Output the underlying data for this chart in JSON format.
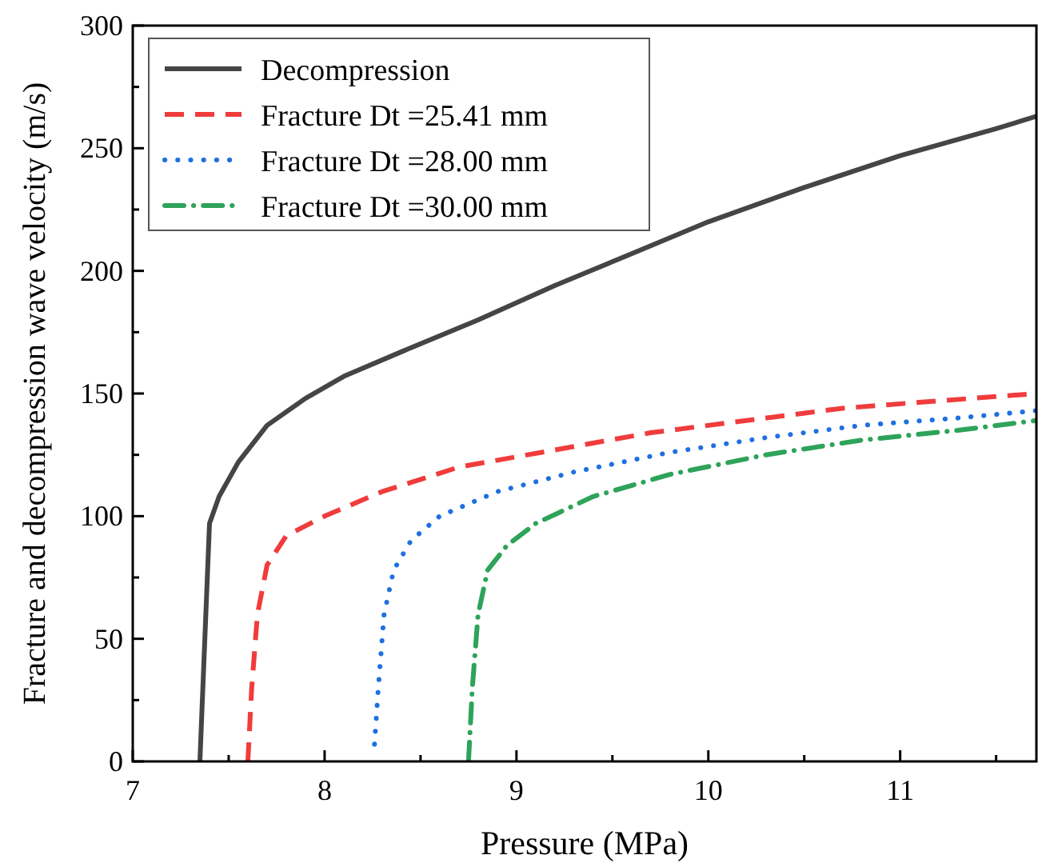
{
  "chart_data": {
    "type": "line",
    "xlabel": "Pressure (MPa)",
    "ylabel": "Fracture and decompression wave velocity (m/s)",
    "xlim": [
      7,
      11.71
    ],
    "ylim": [
      0,
      300
    ],
    "xticks": [
      7,
      {
        "value": 7.5,
        "label": null
      },
      8,
      {
        "value": 8.5,
        "label": null
      },
      9,
      {
        "value": 9.5,
        "label": null
      },
      10,
      {
        "value": 10.5,
        "label": null
      },
      11,
      {
        "value": 11.5,
        "label": null
      }
    ],
    "yticks": [
      0,
      {
        "value": 25,
        "label": null
      },
      50,
      {
        "value": 75,
        "label": null
      },
      100,
      {
        "value": 125,
        "label": null
      },
      150,
      {
        "value": 175,
        "label": null
      },
      200,
      {
        "value": 225,
        "label": null
      },
      250,
      {
        "value": 275,
        "label": null
      },
      300
    ],
    "grid": false,
    "legend": "top left",
    "marker": "none",
    "series": [
      {
        "name": "Decompression",
        "color": "#454545",
        "line_style": "solid",
        "x": [
          7.35,
          7.4,
          7.45,
          7.55,
          7.7,
          7.9,
          8.1,
          8.4,
          8.8,
          9.2,
          9.6,
          10.0,
          10.5,
          11.0,
          11.5,
          11.71
        ],
        "values": [
          0,
          97,
          108,
          122,
          137,
          148,
          157,
          167,
          180,
          194,
          207,
          220,
          234,
          247,
          258,
          263
        ]
      },
      {
        "name": "Fracture Dt =25.41 mm",
        "color": "#f03c3c",
        "line_style": "dashed",
        "x": [
          7.6,
          7.62,
          7.65,
          7.7,
          7.8,
          8.0,
          8.3,
          8.7,
          9.2,
          9.7,
          10.2,
          10.7,
          11.2,
          11.71
        ],
        "values": [
          0,
          30,
          60,
          80,
          92,
          100,
          110,
          120,
          127,
          134,
          139,
          144,
          147,
          150
        ]
      },
      {
        "name": "Fracture Dt =28.00 mm",
        "color": "#1f6fe0",
        "line_style": "dotted",
        "x": [
          8.26,
          8.28,
          8.31,
          8.36,
          8.45,
          8.6,
          8.9,
          9.3,
          9.8,
          10.3,
          10.8,
          11.3,
          11.71
        ],
        "values": [
          7,
          30,
          60,
          78,
          90,
          100,
          110,
          118,
          126,
          132,
          137,
          140,
          143
        ]
      },
      {
        "name": "Fracture Dt =30.00 mm",
        "color": "#2ea35a",
        "line_style": "dashdot",
        "x": [
          8.75,
          8.77,
          8.8,
          8.85,
          8.95,
          9.1,
          9.4,
          9.8,
          10.3,
          10.8,
          11.3,
          11.71
        ],
        "values": [
          0,
          30,
          60,
          78,
          88,
          97,
          108,
          117,
          125,
          131,
          135,
          139
        ]
      }
    ]
  }
}
